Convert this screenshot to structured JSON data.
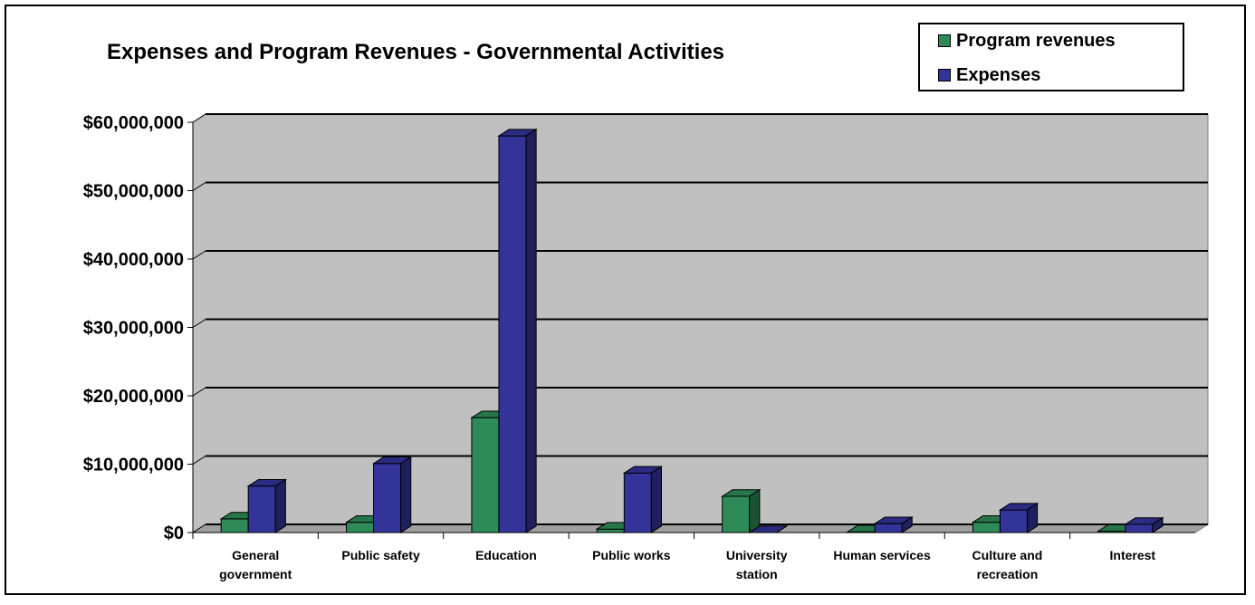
{
  "chart_data": {
    "type": "bar",
    "title": "Expenses and Program Revenues - Governmental Activities",
    "categories": [
      [
        "General",
        "government"
      ],
      [
        "Public safety"
      ],
      [
        "Education"
      ],
      [
        "Public works"
      ],
      [
        "University",
        "station"
      ],
      [
        "Human services"
      ],
      [
        "Culture and",
        "recreation"
      ],
      [
        "Interest"
      ]
    ],
    "series": [
      {
        "name": "Program revenues",
        "color": "#2E8B57",
        "values": [
          2000000,
          1500000,
          16800000,
          500000,
          5300000,
          100000,
          1500000,
          200000
        ]
      },
      {
        "name": "Expenses",
        "color": "#333399",
        "values": [
          6800000,
          10100000,
          58000000,
          8700000,
          0,
          1300000,
          3300000,
          1200000
        ]
      }
    ],
    "yticks": [
      "$0",
      "$10,000,000",
      "$20,000,000",
      "$30,000,000",
      "$40,000,000",
      "$50,000,000",
      "$60,000,000"
    ],
    "ylim": [
      0,
      60000000
    ],
    "grid": true,
    "legend_position": "top-right",
    "background": "#C0C0C0"
  }
}
